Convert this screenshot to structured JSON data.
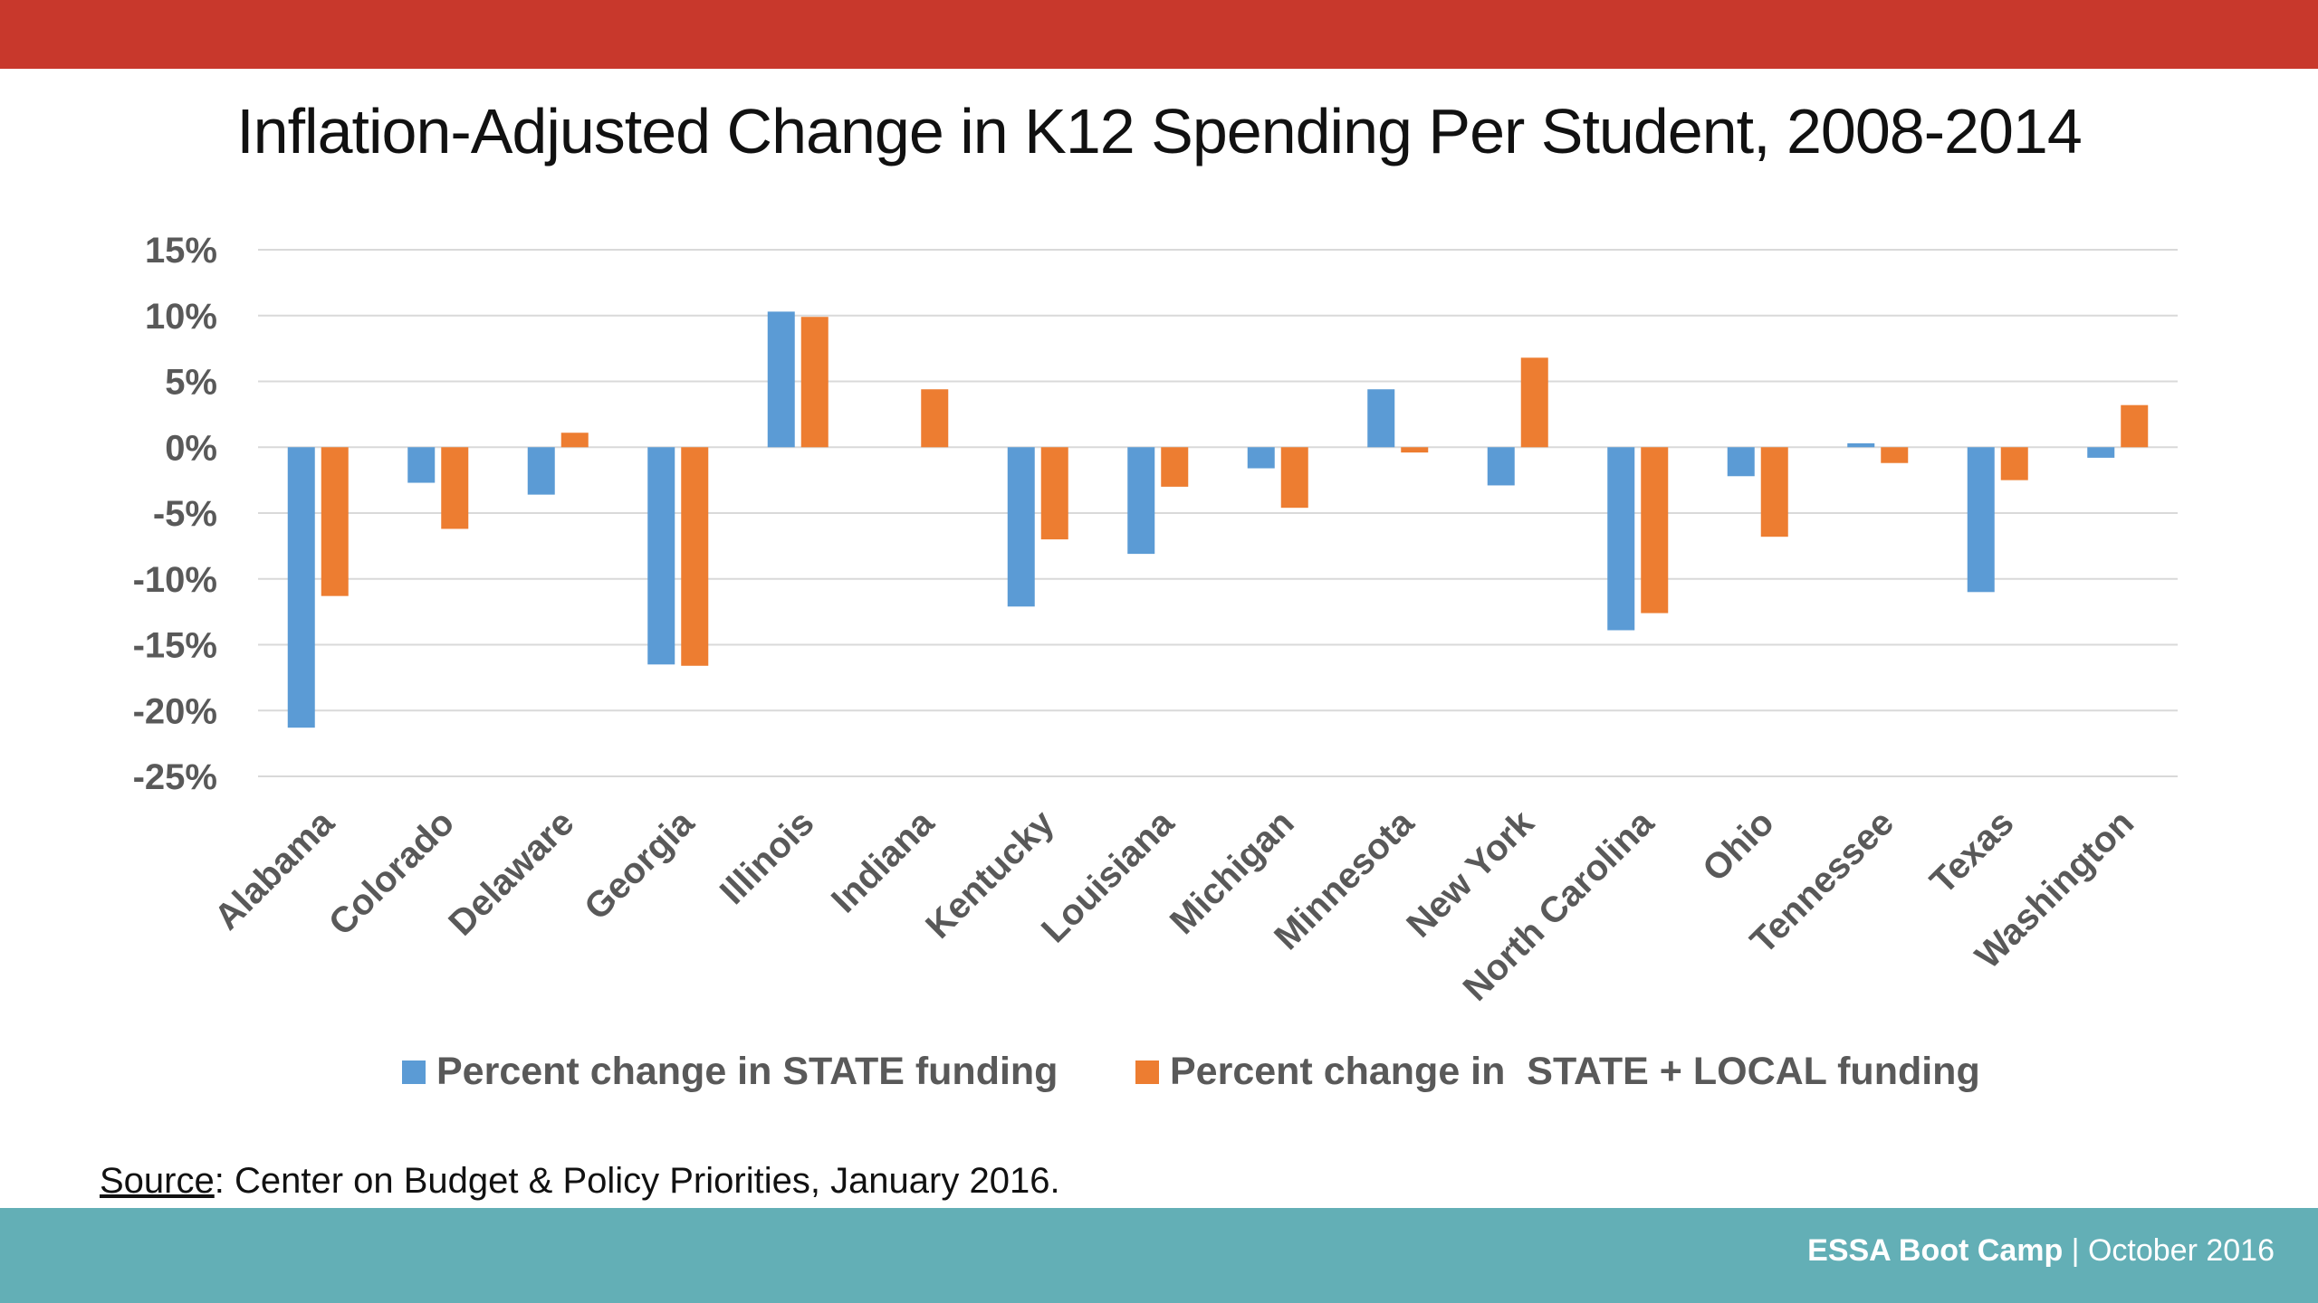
{
  "slide": {
    "title": "Inflation-Adjusted Change in K12 Spending Per Student, 2008-2014",
    "source_label": "Source",
    "source_text": ": Center on Budget & Policy Priorities, January 2016.",
    "footer_strong": "ESSA Boot Camp",
    "footer_sep": " | ",
    "footer_date": "October 2016",
    "top_bar_color": "#C8382C",
    "footer_color": "#63AFB6"
  },
  "chart_data": {
    "type": "bar",
    "title": "Inflation-Adjusted Change in K12 Spending Per Student, 2008-2014",
    "xlabel": "",
    "ylabel": "",
    "ylim": [
      -25,
      15
    ],
    "yticks": [
      15,
      10,
      5,
      0,
      -5,
      -10,
      -15,
      -20,
      -25
    ],
    "ytick_labels": [
      "15%",
      "10%",
      "5%",
      "0%",
      "-5%",
      "-10%",
      "-15%",
      "-20%",
      "-25%"
    ],
    "grid": true,
    "legend_position": "bottom",
    "categories": [
      "Alabama",
      "Colorado",
      "Delaware",
      "Georgia",
      "Illinois",
      "Indiana",
      "Kentucky",
      "Louisiana",
      "Michigan",
      "Minnesota",
      "New York",
      "North Carolina",
      "Ohio",
      "Tennessee",
      "Texas",
      "Washington"
    ],
    "series": [
      {
        "name": "Percent change in STATE funding",
        "color": "#5B9BD5",
        "values": [
          -21.3,
          -2.7,
          -3.6,
          -16.5,
          10.3,
          0,
          -12.1,
          -8.1,
          -1.6,
          4.4,
          -2.9,
          -13.9,
          -2.2,
          0.3,
          -11.0,
          -0.8
        ]
      },
      {
        "name": "Percent change in  STATE + LOCAL funding",
        "color": "#ED7D31",
        "values": [
          -11.3,
          -6.2,
          1.1,
          -16.6,
          9.9,
          4.4,
          -7.0,
          -3.0,
          -4.6,
          -0.4,
          6.8,
          -12.6,
          -6.8,
          -1.2,
          -2.5,
          3.2
        ]
      }
    ]
  }
}
